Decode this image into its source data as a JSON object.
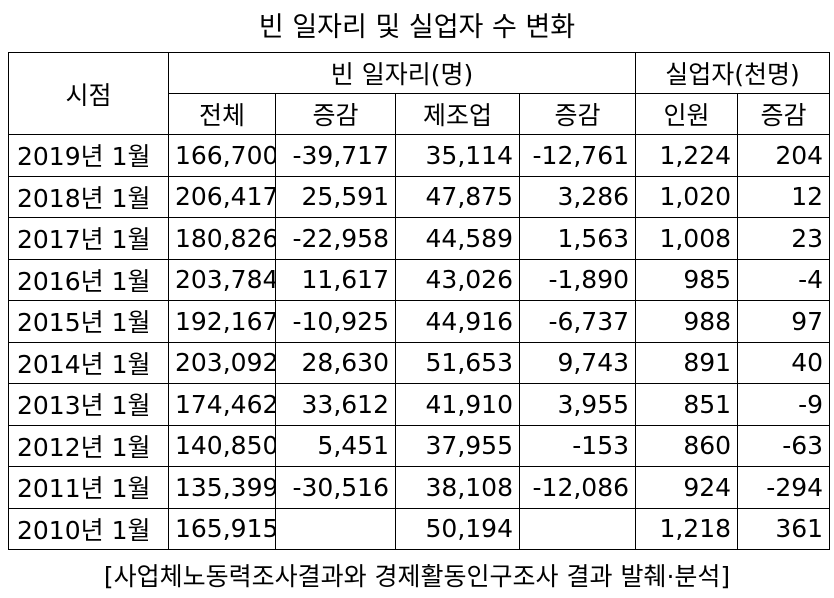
{
  "title": "빈 일자리 및 실업자 수 변화",
  "header": {
    "period": "시점",
    "vacancy_group": "빈 일자리(명)",
    "unemployed_group": "실업자(천명)",
    "cols": [
      "전체",
      "증감",
      "제조업",
      "증감",
      "인원",
      "증감"
    ]
  },
  "rows": [
    {
      "period": "2019년 1월",
      "total": "166,700",
      "total_change": "-39,717",
      "mfg": "35,114",
      "mfg_change": "-12,761",
      "unemployed": "1,224",
      "unemployed_change": "204"
    },
    {
      "period": "2018년 1월",
      "total": "206,417",
      "total_change": "25,591",
      "mfg": "47,875",
      "mfg_change": "3,286",
      "unemployed": "1,020",
      "unemployed_change": "12"
    },
    {
      "period": "2017년 1월",
      "total": "180,826",
      "total_change": "-22,958",
      "mfg": "44,589",
      "mfg_change": "1,563",
      "unemployed": "1,008",
      "unemployed_change": "23"
    },
    {
      "period": "2016년 1월",
      "total": "203,784",
      "total_change": "11,617",
      "mfg": "43,026",
      "mfg_change": "-1,890",
      "unemployed": "985",
      "unemployed_change": "-4"
    },
    {
      "period": "2015년 1월",
      "total": "192,167",
      "total_change": "-10,925",
      "mfg": "44,916",
      "mfg_change": "-6,737",
      "unemployed": "988",
      "unemployed_change": "97"
    },
    {
      "period": "2014년 1월",
      "total": "203,092",
      "total_change": "28,630",
      "mfg": "51,653",
      "mfg_change": "9,743",
      "unemployed": "891",
      "unemployed_change": "40"
    },
    {
      "period": "2013년 1월",
      "total": "174,462",
      "total_change": "33,612",
      "mfg": "41,910",
      "mfg_change": "3,955",
      "unemployed": "851",
      "unemployed_change": "-9"
    },
    {
      "period": "2012년 1월",
      "total": "140,850",
      "total_change": "5,451",
      "mfg": "37,955",
      "mfg_change": "-153",
      "unemployed": "860",
      "unemployed_change": "-63"
    },
    {
      "period": "2011년 1월",
      "total": "135,399",
      "total_change": "-30,516",
      "mfg": "38,108",
      "mfg_change": "-12,086",
      "unemployed": "924",
      "unemployed_change": "-294"
    },
    {
      "period": "2010년 1월",
      "total": "165,915",
      "total_change": "",
      "mfg": "50,194",
      "mfg_change": "",
      "unemployed": "1,218",
      "unemployed_change": "361"
    }
  ],
  "source": "[사업체노동력조사결과와 경제활동인구조사 결과 발췌·분석]"
}
